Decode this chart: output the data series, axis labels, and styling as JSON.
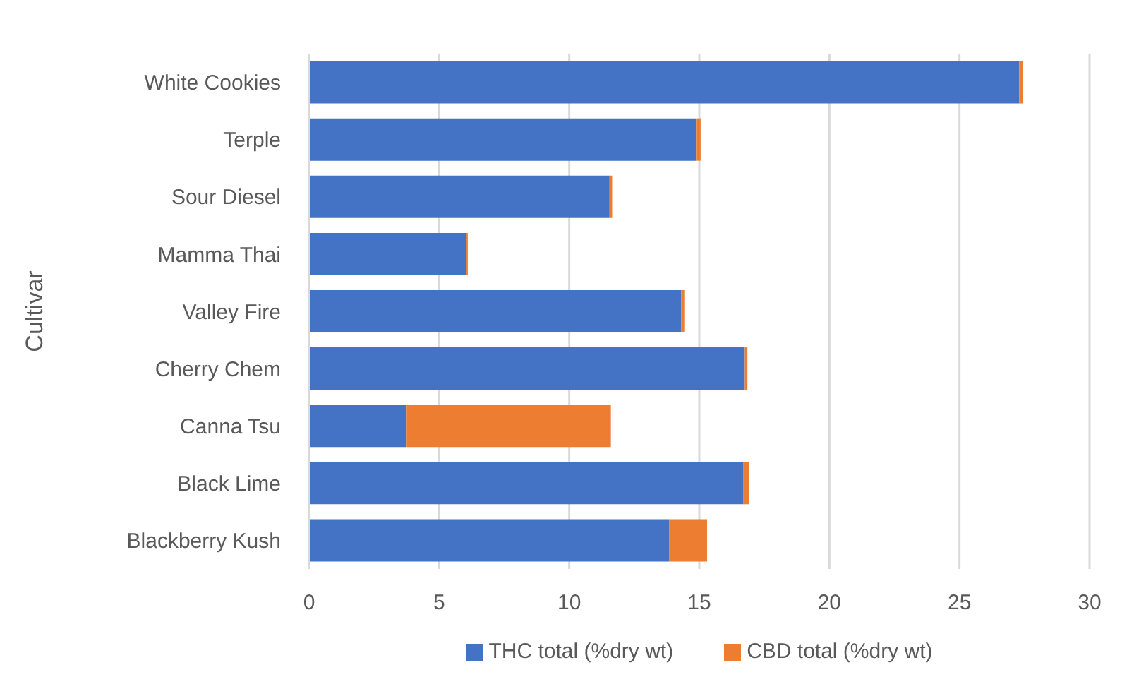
{
  "chart_data": {
    "type": "bar",
    "orientation": "horizontal",
    "stacked": true,
    "ylabel": "Cultivar",
    "categories": [
      "White Cookies",
      "Terple",
      "Sour Diesel",
      "Mamma Thai",
      "Valley Fire",
      "Cherry Chem",
      "Canna Tsu",
      "Black Lime",
      "Blackberry Kush"
    ],
    "series": [
      {
        "name": "THC total (%dry wt)",
        "color": "#4472c4",
        "values": [
          27.3,
          14.9,
          11.55,
          6.05,
          14.3,
          16.75,
          3.75,
          16.7,
          13.85
        ]
      },
      {
        "name": "CBD total (%dry wt)",
        "color": "#ed7d31",
        "values": [
          0.15,
          0.15,
          0.1,
          0.05,
          0.15,
          0.1,
          7.85,
          0.2,
          1.45
        ]
      }
    ],
    "xlim": [
      0,
      30
    ],
    "xticks": [
      0,
      5,
      10,
      15,
      20,
      25,
      30
    ],
    "grid": "x",
    "legend": "bottom"
  }
}
